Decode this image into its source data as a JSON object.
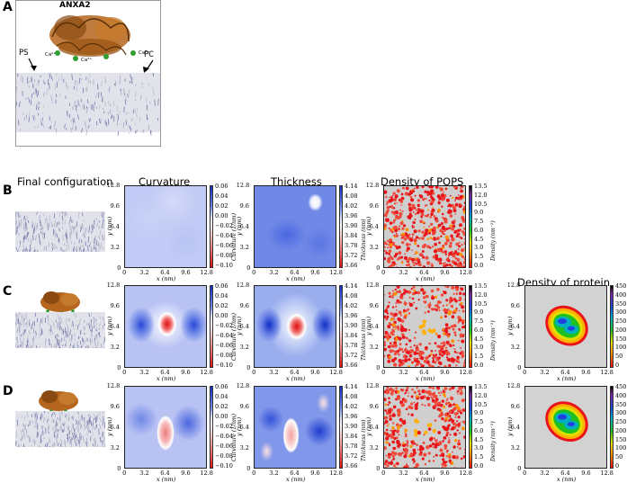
{
  "panel_labels": {
    "a": "A",
    "b": "B",
    "c": "C",
    "d": "D"
  },
  "panel_a": {
    "protein_label": "ANXA2",
    "ps_label": "PS",
    "pc_label": "PC",
    "ca_label": "Ca²⁺"
  },
  "column_titles": {
    "final": "Final configuration",
    "curvature": "Curvature",
    "thickness": "Thickness",
    "density_pops": "Density of POPS",
    "density_protein": "Density of protein"
  },
  "axes": {
    "xlabel": "x (nm)",
    "ylabel": "y (nm)",
    "ticks": [
      "0",
      "3.2",
      "6.4",
      "9.6",
      "12.8"
    ]
  },
  "colorbars": {
    "curvature": {
      "label": "Curvature (1/nm)",
      "ticks": [
        "0.06",
        "0.04",
        "0.02",
        "0.00",
        "−0.02",
        "−0.04",
        "−0.06",
        "−0.08",
        "−0.10"
      ]
    },
    "thickness": {
      "label": "Thickness (nm)",
      "ticks": [
        "4.14",
        "4.08",
        "4.02",
        "3.96",
        "3.90",
        "3.84",
        "3.78",
        "3.72",
        "3.66"
      ]
    },
    "density_pops": {
      "label": "Density (nm⁻²)",
      "ticks": [
        "13.5",
        "12.0",
        "10.5",
        "9.0",
        "7.5",
        "6.0",
        "4.5",
        "3.0",
        "1.5",
        "0.0"
      ]
    },
    "density_protein": {
      "label": "Density (nm⁻²)",
      "ticks": [
        "450",
        "400",
        "350",
        "300",
        "250",
        "200",
        "150",
        "100",
        "50",
        "0"
      ]
    }
  },
  "colors": {
    "blue": "#1f3ecf",
    "red": "#e8141a",
    "protein": "#b5651d",
    "calcium": "#2e9e2e",
    "lipid": "#8a8ec0"
  },
  "chart_data": [
    {
      "type": "heatmap",
      "title": "Curvature",
      "row": "B",
      "xlim": [
        0,
        12.8
      ],
      "ylim": [
        0,
        12.8
      ],
      "clim": [
        -0.1,
        0.06
      ],
      "description_values": "near-uniform light blue"
    },
    {
      "type": "heatmap",
      "title": "Thickness",
      "row": "B",
      "xlim": [
        0,
        12.8
      ],
      "ylim": [
        0,
        12.8
      ],
      "clim": [
        3.66,
        4.14
      ]
    },
    {
      "type": "heatmap",
      "title": "Density of POPS",
      "row": "B",
      "xlim": [
        0,
        12.8
      ],
      "ylim": [
        0,
        12.8
      ],
      "clim": [
        0.0,
        13.5
      ]
    },
    {
      "type": "heatmap",
      "title": "Curvature",
      "row": "C",
      "xlim": [
        0,
        12.8
      ],
      "ylim": [
        0,
        12.8
      ],
      "clim": [
        -0.1,
        0.06
      ]
    },
    {
      "type": "heatmap",
      "title": "Thickness",
      "row": "C",
      "xlim": [
        0,
        12.8
      ],
      "ylim": [
        0,
        12.8
      ],
      "clim": [
        3.66,
        4.14
      ]
    },
    {
      "type": "heatmap",
      "title": "Density of POPS",
      "row": "C",
      "xlim": [
        0,
        12.8
      ],
      "ylim": [
        0,
        12.8
      ],
      "clim": [
        0.0,
        13.5
      ]
    },
    {
      "type": "heatmap",
      "title": "Density of protein",
      "row": "C",
      "xlim": [
        0,
        12.8
      ],
      "ylim": [
        0,
        12.8
      ],
      "clim": [
        0,
        450
      ]
    },
    {
      "type": "heatmap",
      "title": "Curvature",
      "row": "D",
      "xlim": [
        0,
        12.8
      ],
      "ylim": [
        0,
        12.8
      ],
      "clim": [
        -0.1,
        0.06
      ]
    },
    {
      "type": "heatmap",
      "title": "Thickness",
      "row": "D",
      "xlim": [
        0,
        12.8
      ],
      "ylim": [
        0,
        12.8
      ],
      "clim": [
        3.66,
        4.14
      ]
    },
    {
      "type": "heatmap",
      "title": "Density of POPS",
      "row": "D",
      "xlim": [
        0,
        12.8
      ],
      "ylim": [
        0,
        12.8
      ],
      "clim": [
        0.0,
        13.5
      ]
    },
    {
      "type": "heatmap",
      "title": "Density of protein",
      "row": "D",
      "xlim": [
        0,
        12.8
      ],
      "ylim": [
        0,
        12.8
      ],
      "clim": [
        0,
        450
      ]
    }
  ]
}
